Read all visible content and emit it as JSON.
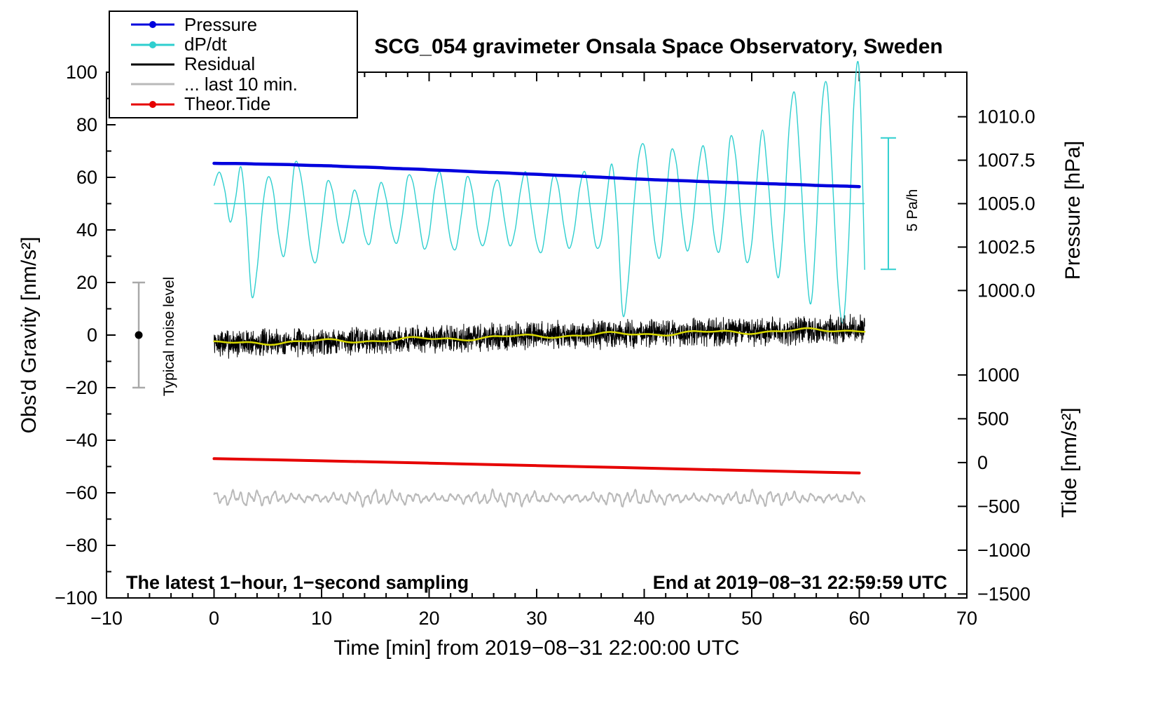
{
  "chart_data": {
    "type": "line",
    "title": "SCG_054 gravimeter Onsala Space Observatory, Sweden",
    "axes": {
      "x": {
        "label": "Time [min] from 2019−08−31 22:00:00 UTC",
        "min": -10,
        "max": 70,
        "major": [
          -10,
          0,
          10,
          20,
          30,
          40,
          50,
          60,
          70
        ],
        "minor_step": 2
      },
      "y_left": {
        "label": "Obs'd Gravity [nm/s²]",
        "min": -100,
        "max": 100,
        "major": [
          -100,
          -80,
          -60,
          -40,
          -20,
          0,
          20,
          40,
          60,
          80,
          100
        ],
        "minor_step": 10
      },
      "y_pressure": {
        "label": "Pressure [hPa]",
        "ref_value": 1005.0,
        "ref_gravity": 50,
        "gravity_per_unit": 6.61,
        "ticks": [
          1010.0,
          1007.5,
          1005.0,
          1002.5,
          1000.0
        ]
      },
      "y_tide": {
        "label": "Tide [nm/s²]",
        "ref_value": 0,
        "ref_gravity": -48.5,
        "gravity_per_unit": 0.03333,
        "ticks": [
          1000,
          500,
          0,
          -500,
          -1000,
          -1500
        ]
      }
    },
    "legend": [
      {
        "label": "Pressure",
        "color": "#0000DE",
        "dot": true
      },
      {
        "label": "dP/dt",
        "color": "#2FCFCF",
        "dot": true
      },
      {
        "label": "Residual",
        "color": "#000000",
        "dot": false
      },
      {
        "label": "... last 10 min.",
        "color": "#B9B9B9",
        "dot": false
      },
      {
        "label": "Theor.Tide",
        "color": "#E60000",
        "dot": true
      }
    ],
    "series": [
      {
        "id": "dpdt",
        "name": "dP/dt",
        "axis": "gravity",
        "color": "#2FCFCF",
        "width": 1.4,
        "smooth": true,
        "x_start": 0,
        "x_step": 0.5,
        "units": "left-axis units; 50 = zero, scale bar = 5 Pa/h",
        "values": [
          57,
          62,
          55,
          43,
          52,
          64,
          45,
          15,
          25,
          48,
          60,
          55,
          38,
          30,
          45,
          65,
          62,
          48,
          32,
          28,
          42,
          58,
          55,
          42,
          35,
          44,
          55,
          50,
          38,
          35,
          48,
          58,
          52,
          40,
          35,
          45,
          60,
          58,
          45,
          33,
          38,
          55,
          62,
          50,
          36,
          33,
          46,
          60,
          55,
          40,
          34,
          42,
          56,
          58,
          44,
          34,
          40,
          55,
          62,
          48,
          35,
          32,
          46,
          60,
          57,
          42,
          33,
          40,
          56,
          62,
          48,
          34,
          36,
          52,
          65,
          45,
          8,
          20,
          48,
          68,
          72,
          55,
          35,
          30,
          50,
          70,
          65,
          45,
          32,
          42,
          62,
          72,
          58,
          38,
          32,
          50,
          75,
          68,
          45,
          28,
          35,
          60,
          78,
          60,
          35,
          22,
          45,
          80,
          92,
          65,
          30,
          12,
          40,
          85,
          95,
          60,
          20,
          5,
          35,
          88,
          100,
          25
        ]
      },
      {
        "id": "pressure",
        "name": "Pressure",
        "axis": "pressure",
        "color": "#0000DE",
        "width": 4.5,
        "smooth": true,
        "x_start": 0,
        "x_step": 1,
        "units": "hPa",
        "values": [
          1007.32,
          1007.31,
          1007.31,
          1007.3,
          1007.28,
          1007.27,
          1007.26,
          1007.25,
          1007.22,
          1007.2,
          1007.19,
          1007.17,
          1007.14,
          1007.12,
          1007.1,
          1007.08,
          1007.05,
          1007.02,
          1007.0,
          1006.98,
          1006.95,
          1006.92,
          1006.9,
          1006.87,
          1006.84,
          1006.81,
          1006.79,
          1006.77,
          1006.74,
          1006.71,
          1006.69,
          1006.66,
          1006.63,
          1006.61,
          1006.58,
          1006.55,
          1006.52,
          1006.49,
          1006.46,
          1006.43,
          1006.4,
          1006.37,
          1006.35,
          1006.33,
          1006.31,
          1006.28,
          1006.26,
          1006.24,
          1006.22,
          1006.2,
          1006.18,
          1006.16,
          1006.14,
          1006.12,
          1006.1,
          1006.08,
          1006.05,
          1006.03,
          1006.02,
          1006.0,
          1005.98
        ]
      },
      {
        "id": "residual",
        "name": "Residual",
        "axis": "gravity",
        "color": "#000000",
        "width": 1,
        "synth": true,
        "t0": 0,
        "t1": 60.5,
        "step": 0.02,
        "seed": 7,
        "noise": 6,
        "units": "nm/s²",
        "baseline": {
          "t": [
            0,
            5,
            10,
            15,
            20,
            25,
            30,
            35,
            40,
            45,
            50,
            55,
            60.5
          ],
          "v": [
            -3.2,
            -2.8,
            -2.4,
            -2.0,
            -1.5,
            -1.0,
            -0.4,
            0.1,
            0.5,
            0.9,
            1.3,
            1.7,
            2.0
          ]
        }
      },
      {
        "id": "residual-smoothed",
        "name": "Residual (smoothed)",
        "axis": "gravity",
        "color": "#D8D800",
        "width": 2.5,
        "synth": true,
        "t0": 0,
        "t1": 60.5,
        "step": 0.1,
        "baseline": {
          "t": [
            0,
            5,
            10,
            15,
            20,
            25,
            30,
            35,
            40,
            45,
            50,
            55,
            60.5
          ],
          "v": [
            -3.2,
            -2.8,
            -2.4,
            -2.0,
            -1.5,
            -1.0,
            -0.4,
            0.1,
            0.5,
            0.9,
            1.3,
            1.7,
            2.0
          ]
        },
        "components": [
          {
            "period": 9,
            "amp": 0.6,
            "phase": 1.0
          },
          {
            "period": 3.7,
            "amp": 0.35,
            "phase": 2.0
          }
        ]
      },
      {
        "id": "last10min",
        "name": "... last 10 min.",
        "axis": "gravity",
        "color": "#B9B9B9",
        "width": 2,
        "synth": true,
        "t0": 0,
        "t1": 60.5,
        "step": 0.02,
        "seed": 11,
        "base": -62,
        "noise": 0.3,
        "components": [
          {
            "period": 0.78,
            "amp": 1.4,
            "phase": 0.3
          },
          {
            "period": 1.85,
            "amp": 0.8,
            "phase": 1.2
          },
          {
            "period": 0.36,
            "amp": 0.45,
            "phase": 2.1
          }
        ],
        "am": {
          "period": 12,
          "depth": 0.35
        }
      },
      {
        "id": "tide",
        "name": "Theor.Tide",
        "axis": "tide",
        "color": "#E60000",
        "width": 4,
        "smooth": true,
        "x_start": 0,
        "x_step": 5,
        "units": "nm/s²",
        "values": [
          45,
          33,
          20,
          7,
          -7,
          -21,
          -35,
          -49,
          -63,
          -78,
          -92,
          -106,
          -119
        ]
      }
    ],
    "annotations": {
      "dpdt_zero_line": {
        "y": 50,
        "x_from": 0,
        "x_to": 60.5,
        "color": "#2FCFCF"
      },
      "noise_bar": {
        "label": "Typical noise level",
        "x": -7,
        "y_from": -20,
        "y_to": 20,
        "dot_y": 0,
        "color": "#A9A9A9",
        "dot_color": "#000000"
      },
      "rate_scale_bar": {
        "label": "5 Pa/h",
        "x": 62.7,
        "y_from": 25,
        "y_to": 75,
        "color": "#2FCFCF"
      },
      "sampling_note": "The latest 1−hour, 1−second sampling",
      "end_note": "End at 2019−08−31 22:59:59 UTC"
    }
  }
}
